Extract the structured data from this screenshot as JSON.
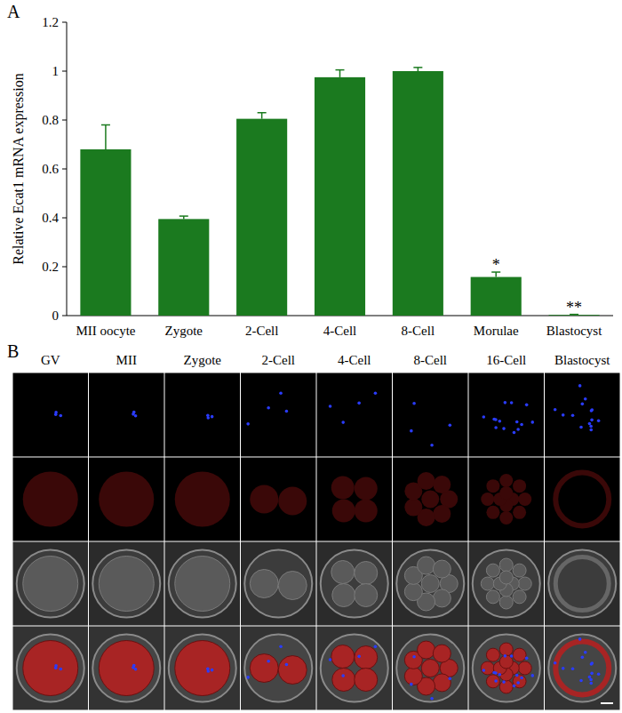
{
  "chart_data": {
    "type": "bar",
    "ylabel": "Relative Ecat1 mRNA expression",
    "categories": [
      "MII oocyte",
      "Zygote",
      "2-Cell",
      "4-Cell",
      "8-Cell",
      "Morulae",
      "Blastocyst"
    ],
    "values": [
      0.68,
      0.395,
      0.805,
      0.975,
      1.0,
      0.158,
      0.003
    ],
    "errors": [
      0.1,
      0.012,
      0.025,
      0.03,
      0.015,
      0.02,
      0.002
    ],
    "color": "#1b7a1f",
    "ylim": [
      0,
      1.2
    ],
    "yticks": [
      0,
      0.2,
      0.4,
      0.6,
      0.8,
      1,
      1.2
    ],
    "grid": false,
    "annotations": [
      {
        "text": "*",
        "category": "Morulae"
      },
      {
        "text": "**",
        "category": "Blastocyst"
      }
    ]
  },
  "panel_labels": [
    "A",
    "B"
  ],
  "image_panel": {
    "columns": [
      "GV",
      "MII",
      "Zygote",
      "2-Cell",
      "4-Cell",
      "8-Cell",
      "16-Cell",
      "Blastocyst"
    ]
  }
}
